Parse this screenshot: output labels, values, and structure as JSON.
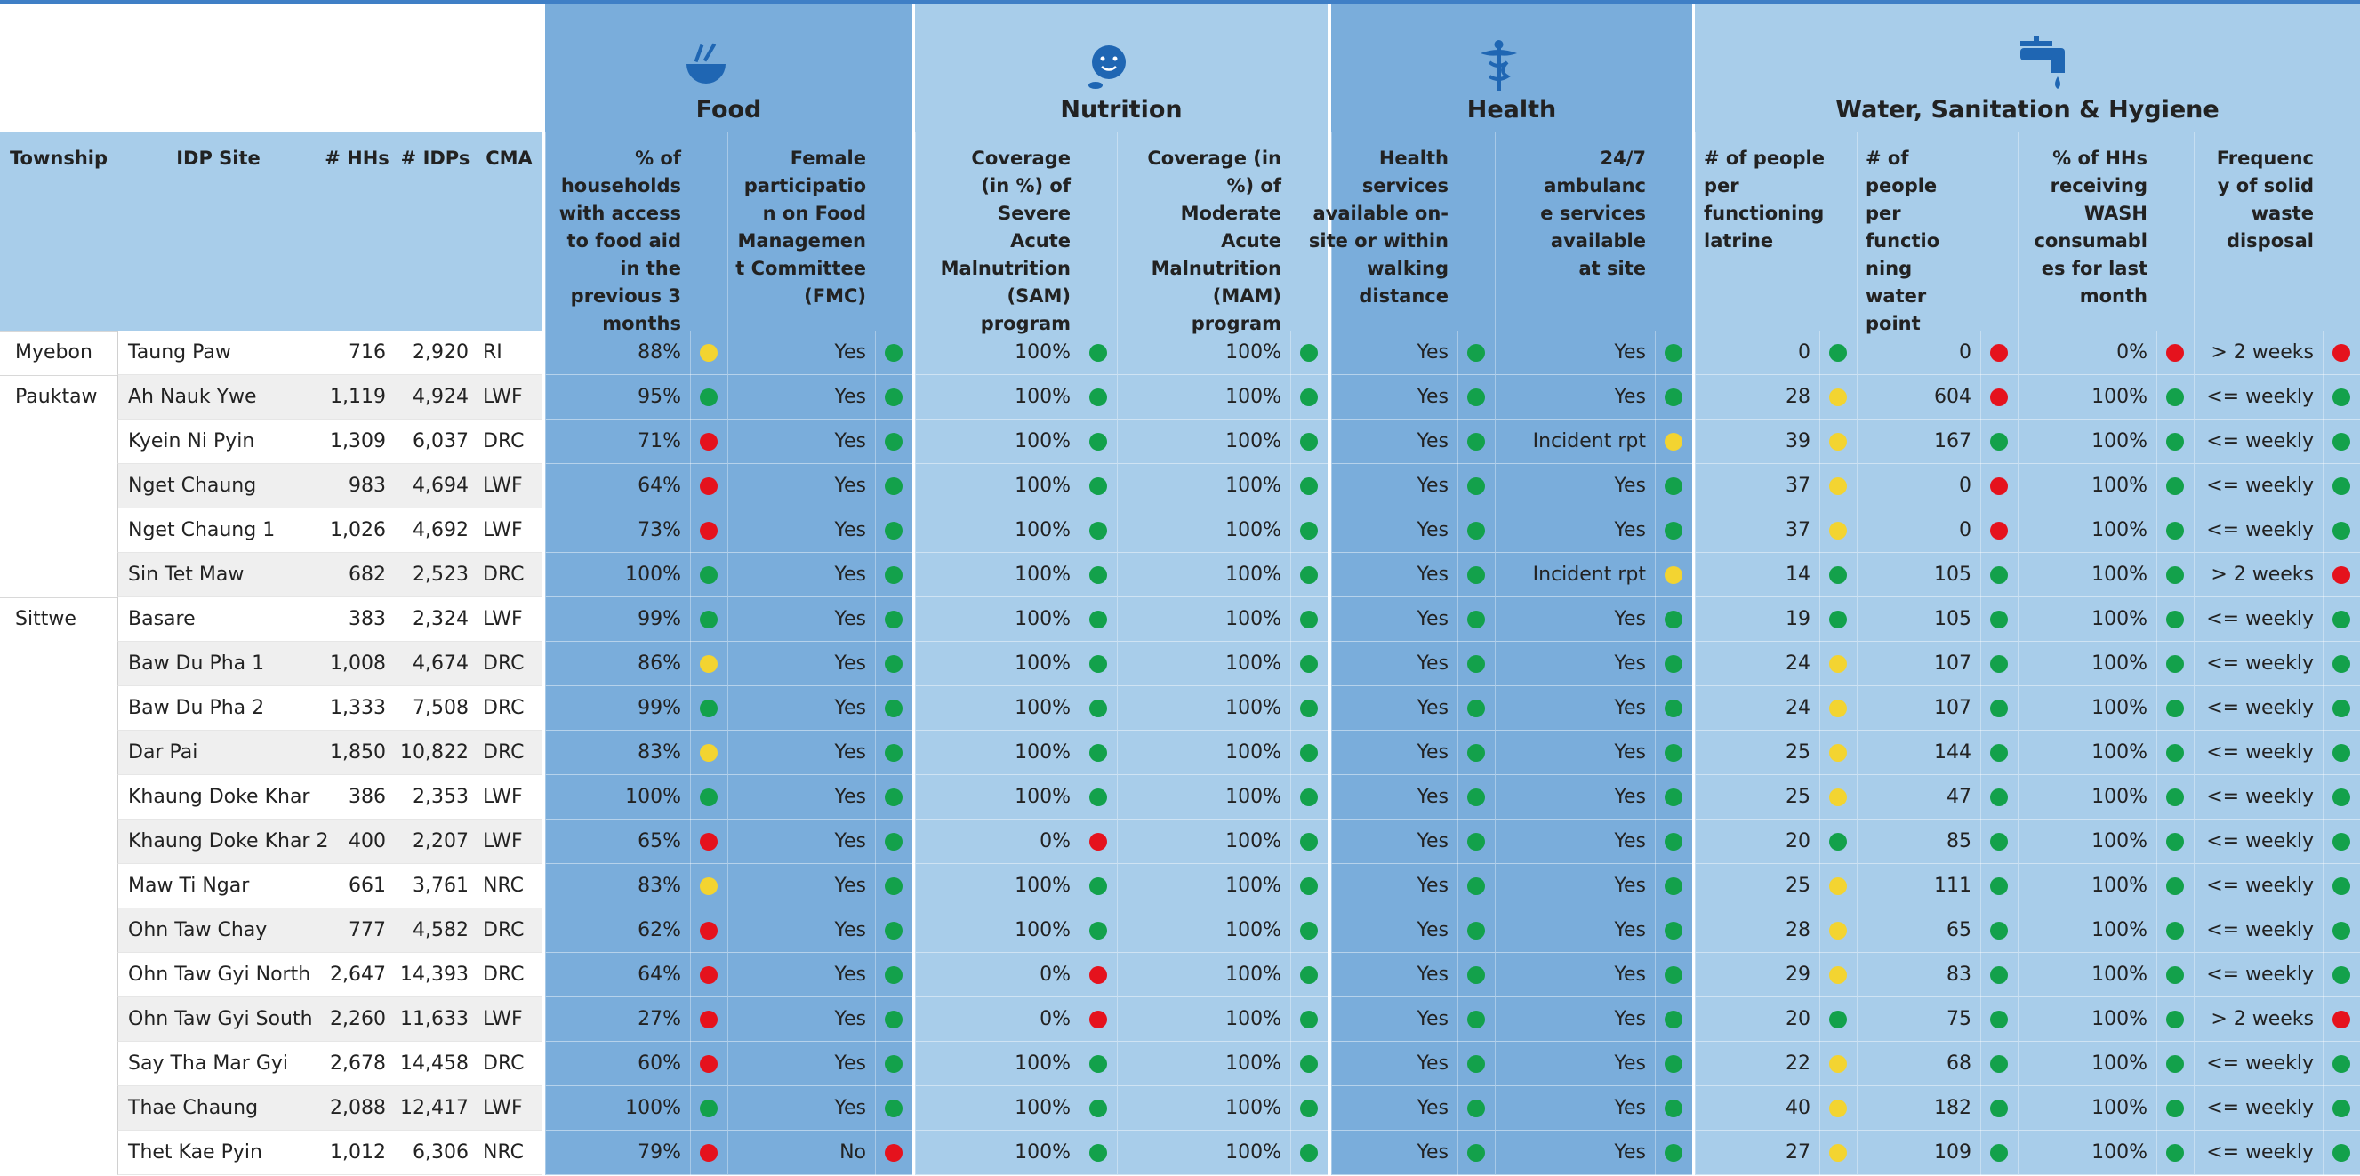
{
  "groups": [
    {
      "title": "Food"
    },
    {
      "title": "Nutrition"
    },
    {
      "title": "Health"
    },
    {
      "title": "Water, Sanitation & Hygiene"
    }
  ],
  "columns": {
    "township": "Township",
    "site": "IDP Site",
    "hhs": "# HHs",
    "idps": "# IDPs",
    "cma": "CMA"
  },
  "indicators": [
    {
      "label": "% of households with access to food aid in the previous 3 months"
    },
    {
      "label": "Female participation on Food Management Committee (FMC)"
    },
    {
      "label": "Coverage (in %) of Severe Acute Malnutrition (SAM) program"
    },
    {
      "label": "Coverage (in %) of Moderate Acute Malnutrition (MAM) program"
    },
    {
      "label": "Health services available on-site or within walking distance"
    },
    {
      "label": "24/7 ambulance services available at site"
    },
    {
      "label": "# of people per functioning latrine"
    },
    {
      "label": "# of people per functioning water point"
    },
    {
      "label": "% of HHs receiving WASH consumables for last month"
    },
    {
      "label": "Frequency of solid waste disposal"
    }
  ],
  "status_colors": {
    "green": "#13a14b",
    "yellow": "#f3d431",
    "red": "#e5121d"
  },
  "rows": [
    {
      "township": "Myebon",
      "site": "Taung Paw",
      "hhs": "716",
      "idps": "2,920",
      "cma": "RI",
      "cells": [
        [
          "88%",
          "yellow"
        ],
        [
          "Yes",
          "green"
        ],
        [
          "100%",
          "green"
        ],
        [
          "100%",
          "green"
        ],
        [
          "Yes",
          "green"
        ],
        [
          "Yes",
          "green"
        ],
        [
          "0",
          "green"
        ],
        [
          "0",
          "red"
        ],
        [
          "0%",
          "red"
        ],
        [
          "> 2 weeks",
          "red"
        ]
      ]
    },
    {
      "township": "Pauktaw",
      "site": "Ah Nauk Ywe",
      "hhs": "1,119",
      "idps": "4,924",
      "cma": "LWF",
      "cells": [
        [
          "95%",
          "green"
        ],
        [
          "Yes",
          "green"
        ],
        [
          "100%",
          "green"
        ],
        [
          "100%",
          "green"
        ],
        [
          "Yes",
          "green"
        ],
        [
          "Yes",
          "green"
        ],
        [
          "28",
          "yellow"
        ],
        [
          "604",
          "red"
        ],
        [
          "100%",
          "green"
        ],
        [
          "<= weekly",
          "green"
        ]
      ]
    },
    {
      "township": null,
      "site": "Kyein Ni Pyin",
      "hhs": "1,309",
      "idps": "6,037",
      "cma": "DRC",
      "cells": [
        [
          "71%",
          "red"
        ],
        [
          "Yes",
          "green"
        ],
        [
          "100%",
          "green"
        ],
        [
          "100%",
          "green"
        ],
        [
          "Yes",
          "green"
        ],
        [
          "Incident rpt",
          "yellow"
        ],
        [
          "39",
          "yellow"
        ],
        [
          "167",
          "green"
        ],
        [
          "100%",
          "green"
        ],
        [
          "<= weekly",
          "green"
        ]
      ]
    },
    {
      "township": null,
      "site": "Nget Chaung",
      "hhs": "983",
      "idps": "4,694",
      "cma": "LWF",
      "cells": [
        [
          "64%",
          "red"
        ],
        [
          "Yes",
          "green"
        ],
        [
          "100%",
          "green"
        ],
        [
          "100%",
          "green"
        ],
        [
          "Yes",
          "green"
        ],
        [
          "Yes",
          "green"
        ],
        [
          "37",
          "yellow"
        ],
        [
          "0",
          "red"
        ],
        [
          "100%",
          "green"
        ],
        [
          "<= weekly",
          "green"
        ]
      ]
    },
    {
      "township": null,
      "site": "Nget Chaung 1",
      "hhs": "1,026",
      "idps": "4,692",
      "cma": "LWF",
      "cells": [
        [
          "73%",
          "red"
        ],
        [
          "Yes",
          "green"
        ],
        [
          "100%",
          "green"
        ],
        [
          "100%",
          "green"
        ],
        [
          "Yes",
          "green"
        ],
        [
          "Yes",
          "green"
        ],
        [
          "37",
          "yellow"
        ],
        [
          "0",
          "red"
        ],
        [
          "100%",
          "green"
        ],
        [
          "<= weekly",
          "green"
        ]
      ]
    },
    {
      "township": null,
      "site": "Sin Tet Maw",
      "hhs": "682",
      "idps": "2,523",
      "cma": "DRC",
      "cells": [
        [
          "100%",
          "green"
        ],
        [
          "Yes",
          "green"
        ],
        [
          "100%",
          "green"
        ],
        [
          "100%",
          "green"
        ],
        [
          "Yes",
          "green"
        ],
        [
          "Incident rpt",
          "yellow"
        ],
        [
          "14",
          "green"
        ],
        [
          "105",
          "green"
        ],
        [
          "100%",
          "green"
        ],
        [
          "> 2 weeks",
          "red"
        ]
      ]
    },
    {
      "township": "Sittwe",
      "site": "Basare",
      "hhs": "383",
      "idps": "2,324",
      "cma": "LWF",
      "cells": [
        [
          "99%",
          "green"
        ],
        [
          "Yes",
          "green"
        ],
        [
          "100%",
          "green"
        ],
        [
          "100%",
          "green"
        ],
        [
          "Yes",
          "green"
        ],
        [
          "Yes",
          "green"
        ],
        [
          "19",
          "green"
        ],
        [
          "105",
          "green"
        ],
        [
          "100%",
          "green"
        ],
        [
          "<= weekly",
          "green"
        ]
      ]
    },
    {
      "township": null,
      "site": "Baw Du Pha 1",
      "hhs": "1,008",
      "idps": "4,674",
      "cma": "DRC",
      "cells": [
        [
          "86%",
          "yellow"
        ],
        [
          "Yes",
          "green"
        ],
        [
          "100%",
          "green"
        ],
        [
          "100%",
          "green"
        ],
        [
          "Yes",
          "green"
        ],
        [
          "Yes",
          "green"
        ],
        [
          "24",
          "yellow"
        ],
        [
          "107",
          "green"
        ],
        [
          "100%",
          "green"
        ],
        [
          "<= weekly",
          "green"
        ]
      ]
    },
    {
      "township": null,
      "site": "Baw Du Pha 2",
      "hhs": "1,333",
      "idps": "7,508",
      "cma": "DRC",
      "cells": [
        [
          "99%",
          "green"
        ],
        [
          "Yes",
          "green"
        ],
        [
          "100%",
          "green"
        ],
        [
          "100%",
          "green"
        ],
        [
          "Yes",
          "green"
        ],
        [
          "Yes",
          "green"
        ],
        [
          "24",
          "yellow"
        ],
        [
          "107",
          "green"
        ],
        [
          "100%",
          "green"
        ],
        [
          "<= weekly",
          "green"
        ]
      ]
    },
    {
      "township": null,
      "site": "Dar Pai",
      "hhs": "1,850",
      "idps": "10,822",
      "cma": "DRC",
      "cells": [
        [
          "83%",
          "yellow"
        ],
        [
          "Yes",
          "green"
        ],
        [
          "100%",
          "green"
        ],
        [
          "100%",
          "green"
        ],
        [
          "Yes",
          "green"
        ],
        [
          "Yes",
          "green"
        ],
        [
          "25",
          "yellow"
        ],
        [
          "144",
          "green"
        ],
        [
          "100%",
          "green"
        ],
        [
          "<= weekly",
          "green"
        ]
      ]
    },
    {
      "township": null,
      "site": "Khaung Doke Khar",
      "hhs": "386",
      "idps": "2,353",
      "cma": "LWF",
      "cells": [
        [
          "100%",
          "green"
        ],
        [
          "Yes",
          "green"
        ],
        [
          "100%",
          "green"
        ],
        [
          "100%",
          "green"
        ],
        [
          "Yes",
          "green"
        ],
        [
          "Yes",
          "green"
        ],
        [
          "25",
          "yellow"
        ],
        [
          "47",
          "green"
        ],
        [
          "100%",
          "green"
        ],
        [
          "<= weekly",
          "green"
        ]
      ]
    },
    {
      "township": null,
      "site": "Khaung Doke Khar 2",
      "hhs": "400",
      "idps": "2,207",
      "cma": "LWF",
      "cells": [
        [
          "65%",
          "red"
        ],
        [
          "Yes",
          "green"
        ],
        [
          "0%",
          "red"
        ],
        [
          "100%",
          "green"
        ],
        [
          "Yes",
          "green"
        ],
        [
          "Yes",
          "green"
        ],
        [
          "20",
          "green"
        ],
        [
          "85",
          "green"
        ],
        [
          "100%",
          "green"
        ],
        [
          "<= weekly",
          "green"
        ]
      ]
    },
    {
      "township": null,
      "site": "Maw Ti Ngar",
      "hhs": "661",
      "idps": "3,761",
      "cma": "NRC",
      "cells": [
        [
          "83%",
          "yellow"
        ],
        [
          "Yes",
          "green"
        ],
        [
          "100%",
          "green"
        ],
        [
          "100%",
          "green"
        ],
        [
          "Yes",
          "green"
        ],
        [
          "Yes",
          "green"
        ],
        [
          "25",
          "yellow"
        ],
        [
          "111",
          "green"
        ],
        [
          "100%",
          "green"
        ],
        [
          "<= weekly",
          "green"
        ]
      ]
    },
    {
      "township": null,
      "site": "Ohn Taw Chay",
      "hhs": "777",
      "idps": "4,582",
      "cma": "DRC",
      "cells": [
        [
          "62%",
          "red"
        ],
        [
          "Yes",
          "green"
        ],
        [
          "100%",
          "green"
        ],
        [
          "100%",
          "green"
        ],
        [
          "Yes",
          "green"
        ],
        [
          "Yes",
          "green"
        ],
        [
          "28",
          "yellow"
        ],
        [
          "65",
          "green"
        ],
        [
          "100%",
          "green"
        ],
        [
          "<= weekly",
          "green"
        ]
      ]
    },
    {
      "township": null,
      "site": "Ohn Taw Gyi North",
      "hhs": "2,647",
      "idps": "14,393",
      "cma": "DRC",
      "cells": [
        [
          "64%",
          "red"
        ],
        [
          "Yes",
          "green"
        ],
        [
          "0%",
          "red"
        ],
        [
          "100%",
          "green"
        ],
        [
          "Yes",
          "green"
        ],
        [
          "Yes",
          "green"
        ],
        [
          "29",
          "yellow"
        ],
        [
          "83",
          "green"
        ],
        [
          "100%",
          "green"
        ],
        [
          "<= weekly",
          "green"
        ]
      ]
    },
    {
      "township": null,
      "site": "Ohn Taw Gyi South",
      "hhs": "2,260",
      "idps": "11,633",
      "cma": "LWF",
      "cells": [
        [
          "27%",
          "red"
        ],
        [
          "Yes",
          "green"
        ],
        [
          "0%",
          "red"
        ],
        [
          "100%",
          "green"
        ],
        [
          "Yes",
          "green"
        ],
        [
          "Yes",
          "green"
        ],
        [
          "20",
          "green"
        ],
        [
          "75",
          "green"
        ],
        [
          "100%",
          "green"
        ],
        [
          "> 2 weeks",
          "red"
        ]
      ]
    },
    {
      "township": null,
      "site": "Say Tha Mar Gyi",
      "hhs": "2,678",
      "idps": "14,458",
      "cma": "DRC",
      "cells": [
        [
          "60%",
          "red"
        ],
        [
          "Yes",
          "green"
        ],
        [
          "100%",
          "green"
        ],
        [
          "100%",
          "green"
        ],
        [
          "Yes",
          "green"
        ],
        [
          "Yes",
          "green"
        ],
        [
          "22",
          "yellow"
        ],
        [
          "68",
          "green"
        ],
        [
          "100%",
          "green"
        ],
        [
          "<= weekly",
          "green"
        ]
      ]
    },
    {
      "township": null,
      "site": "Thae Chaung",
      "hhs": "2,088",
      "idps": "12,417",
      "cma": "LWF",
      "cells": [
        [
          "100%",
          "green"
        ],
        [
          "Yes",
          "green"
        ],
        [
          "100%",
          "green"
        ],
        [
          "100%",
          "green"
        ],
        [
          "Yes",
          "green"
        ],
        [
          "Yes",
          "green"
        ],
        [
          "40",
          "yellow"
        ],
        [
          "182",
          "green"
        ],
        [
          "100%",
          "green"
        ],
        [
          "<= weekly",
          "green"
        ]
      ]
    },
    {
      "township": null,
      "site": "Thet Kae Pyin",
      "hhs": "1,012",
      "idps": "6,306",
      "cma": "NRC",
      "cells": [
        [
          "79%",
          "red"
        ],
        [
          "No",
          "red"
        ],
        [
          "100%",
          "green"
        ],
        [
          "100%",
          "green"
        ],
        [
          "Yes",
          "green"
        ],
        [
          "Yes",
          "green"
        ],
        [
          "27",
          "yellow"
        ],
        [
          "109",
          "green"
        ],
        [
          "100%",
          "green"
        ],
        [
          "<= weekly",
          "green"
        ]
      ]
    }
  ]
}
